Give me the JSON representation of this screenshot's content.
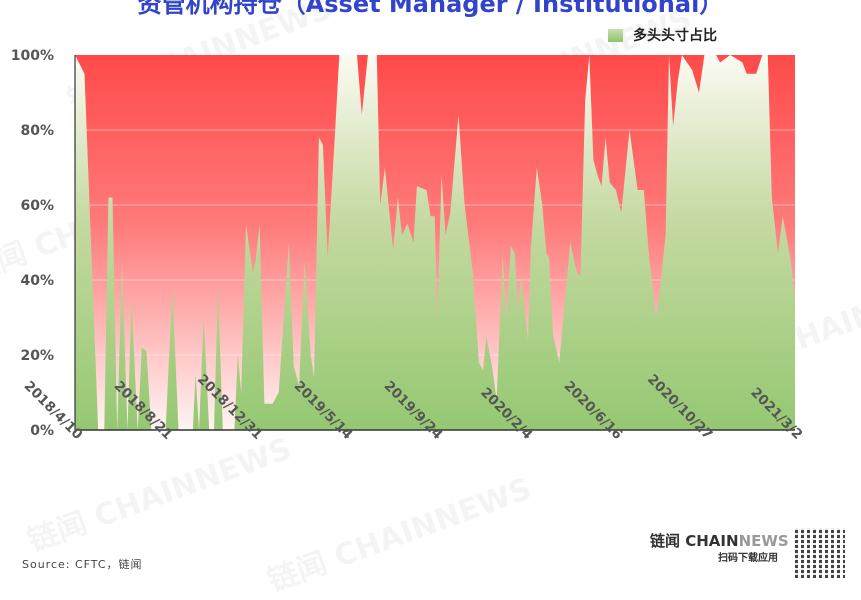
{
  "chart_data": {
    "type": "area",
    "title": "资管机构持仓（Asset Manager / Institutional）",
    "legend": {
      "entries": [
        "多头头寸占比"
      ],
      "placement": "top-right"
    },
    "ylim": [
      0,
      100
    ],
    "yticks": [
      "0%",
      "20%",
      "40%",
      "60%",
      "80%",
      "100%"
    ],
    "xticks": [
      "2018/4/10",
      "2018/8/21",
      "2018/12/31",
      "2019/5/14",
      "2019/9/24",
      "2020/2/4",
      "2020/6/16",
      "2020/10/27",
      "2021/3/2"
    ],
    "grid": "horizontal",
    "colors": {
      "long": "#99cc77",
      "short": "#ff4d4d"
    },
    "series": [
      {
        "name": "多头头寸占比",
        "x": [
          "2018-04-10",
          "2018-04-24",
          "2018-05-14",
          "2018-05-23",
          "2018-05-29",
          "2018-06-04",
          "2018-06-11",
          "2018-06-18",
          "2018-06-26",
          "2018-07-02",
          "2018-07-11",
          "2018-07-17",
          "2018-07-24",
          "2018-07-31",
          "2018-08-21",
          "2018-08-31",
          "2018-09-09",
          "2018-09-30",
          "2018-10-04",
          "2018-10-09",
          "2018-10-16",
          "2018-10-24",
          "2018-10-31",
          "2018-11-06",
          "2018-11-13",
          "2018-11-30",
          "2018-12-05",
          "2018-12-10",
          "2018-12-17",
          "2018-12-27",
          "2018-12-31",
          "2019-01-06",
          "2019-01-13",
          "2019-01-25",
          "2019-02-03",
          "2019-02-18",
          "2019-02-25",
          "2019-03-05",
          "2019-03-13",
          "2019-03-22",
          "2019-03-27",
          "2019-04-03",
          "2019-04-09",
          "2019-04-16",
          "2019-04-27",
          "2019-05-03",
          "2019-05-29",
          "2019-06-05",
          "2019-06-14",
          "2019-06-27",
          "2019-07-02",
          "2019-07-09",
          "2019-07-21",
          "2019-07-28",
          "2019-08-03",
          "2019-08-11",
          "2019-08-20",
          "2019-08-25",
          "2019-09-08",
          "2019-09-14",
          "2019-09-20",
          "2019-09-24",
          "2019-09-30",
          "2019-10-06",
          "2019-10-13",
          "2019-10-25",
          "2019-11-03",
          "2019-11-15",
          "2019-11-24",
          "2019-11-30",
          "2019-12-05",
          "2019-12-14",
          "2019-12-20",
          "2019-12-29",
          "2020-01-03",
          "2020-01-10",
          "2020-01-16",
          "2020-01-20",
          "2020-01-25",
          "2020-02-04",
          "2020-02-08",
          "2020-02-17",
          "2020-02-25",
          "2020-03-02",
          "2020-03-06",
          "2020-03-12",
          "2020-03-21",
          "2020-04-06",
          "2020-04-16",
          "2020-04-21",
          "2020-04-28",
          "2020-05-04",
          "2020-05-10",
          "2020-05-16",
          "2020-05-22",
          "2020-05-28",
          "2020-06-03",
          "2020-06-12",
          "2020-06-20",
          "2020-07-02",
          "2020-07-14",
          "2020-07-23",
          "2020-07-30",
          "2020-08-10",
          "2020-08-16",
          "2020-08-24",
          "2020-08-29",
          "2020-09-04",
          "2020-09-11",
          "2020-09-17",
          "2020-10-02",
          "2020-10-12",
          "2020-10-20",
          "2020-11-06",
          "2020-11-12",
          "2020-11-27",
          "2020-12-15",
          "2020-12-21",
          "2021-01-04",
          "2021-01-13",
          "2021-01-21",
          "2021-01-27",
          "2021-02-05",
          "2021-02-12",
          "2021-02-24",
          "2021-03-02"
        ],
        "values": [
          100,
          95,
          0,
          0,
          62,
          62,
          0,
          45,
          0,
          35,
          0,
          22,
          21,
          0,
          0,
          38,
          0,
          0,
          15,
          0,
          30,
          0,
          0,
          38,
          0,
          0,
          20,
          10,
          55,
          42,
          45,
          55,
          7,
          7,
          10,
          50,
          17,
          12,
          45,
          20,
          14,
          78,
          76,
          46,
          80,
          100,
          100,
          84,
          100,
          100,
          60,
          70,
          48,
          62,
          52,
          55,
          50,
          65,
          64,
          57,
          57,
          30,
          68,
          52,
          58,
          84,
          60,
          42,
          18,
          16,
          25,
          16,
          8,
          47,
          30,
          49,
          47,
          32,
          41,
          24,
          48,
          70,
          60,
          47,
          46,
          25,
          18,
          50,
          42,
          41,
          88,
          100,
          72,
          68,
          65,
          78,
          66,
          64,
          58,
          80,
          64,
          64,
          48,
          30,
          38,
          52,
          100,
          81,
          93,
          100,
          96,
          90,
          100,
          100,
          98,
          100,
          98,
          95,
          95,
          100,
          100,
          62,
          47,
          57,
          45,
          35
        ]
      }
    ]
  },
  "brand": {
    "name_cn": "链闻",
    "name_en_1": "CHAIN",
    "name_en_2": "NEWS",
    "subtitle": "扫码下载应用"
  },
  "watermark": "链闻 CHAINNEWS",
  "source": "Source: CFTC，链闻"
}
